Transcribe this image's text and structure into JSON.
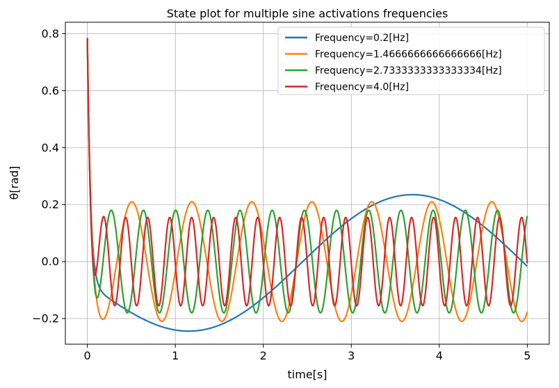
{
  "chart_data": {
    "type": "line",
    "title": "State plot for multiple sine activations frequencies",
    "xlabel": "time[s]",
    "ylabel": "θ[rad]",
    "xlim": [
      -0.25,
      5.25
    ],
    "ylim": [
      -0.29,
      0.84
    ],
    "xticks": [
      0,
      1,
      2,
      3,
      4,
      5
    ],
    "xtick_labels": [
      "0",
      "1",
      "2",
      "3",
      "4",
      "5"
    ],
    "yticks": [
      -0.2,
      0.0,
      0.2,
      0.4,
      0.6,
      0.8
    ],
    "ytick_labels": [
      "−0.2",
      "0.0",
      "0.2",
      "0.4",
      "0.6",
      "0.8"
    ],
    "grid": true,
    "legend_position": "top-right",
    "initial_value": 0.785,
    "series": [
      {
        "name": "Frequency=0.2[Hz]",
        "color": "#1f77b4",
        "frequency": 0.2,
        "amplitude": 0.235,
        "phase_zero": 0.07,
        "baseline_offset": -0.065
      },
      {
        "name": "Frequency=1.4666666666666666[Hz]",
        "color": "#ff7f0e",
        "frequency": 1.4666666666666666,
        "amplitude": 0.21,
        "phase_zero": 0.05,
        "baseline_offset": 0.0
      },
      {
        "name": "Frequency=2.7333333333333334[Hz]",
        "color": "#2ca02c",
        "frequency": 2.7333333333333334,
        "amplitude": 0.18,
        "phase_zero": 0.05,
        "baseline_offset": 0.0
      },
      {
        "name": "Frequency=4.0[Hz]",
        "color": "#d62728",
        "frequency": 4.0,
        "amplitude": 0.155,
        "phase_zero": 0.04,
        "baseline_offset": 0.0
      }
    ]
  }
}
